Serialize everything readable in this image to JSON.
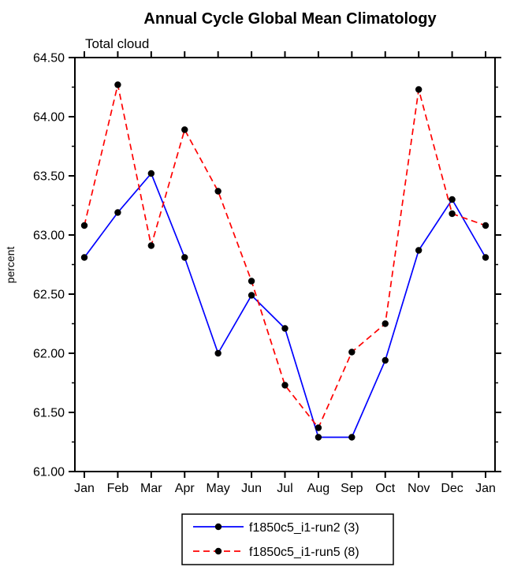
{
  "title": "Annual Cycle Global Mean Climatology",
  "subtitle": "Total cloud",
  "ylabel": "percent",
  "chart_data": {
    "type": "line",
    "categories": [
      "Jan",
      "Feb",
      "Mar",
      "Apr",
      "May",
      "Jun",
      "Jul",
      "Aug",
      "Sep",
      "Oct",
      "Nov",
      "Dec",
      "Jan"
    ],
    "series": [
      {
        "name": "f1850c5_i1-run2 (3)",
        "color": "#0000ff",
        "style": "solid",
        "values": [
          62.81,
          63.19,
          63.52,
          62.81,
          62.0,
          62.49,
          62.21,
          61.29,
          61.29,
          61.94,
          62.87,
          63.3,
          62.81
        ]
      },
      {
        "name": "f1850c5_i1-run5 (8)",
        "color": "#ff0000",
        "style": "dashed",
        "values": [
          63.08,
          64.27,
          62.91,
          63.89,
          63.37,
          62.61,
          61.73,
          61.37,
          62.01,
          62.25,
          64.23,
          63.18,
          63.08
        ]
      }
    ],
    "ylim": [
      61.0,
      64.5
    ],
    "ytick_step": 0.5,
    "ytick_minor_step": 0.25,
    "ytick_format_decimals": 2,
    "marker_color": "#000000",
    "grid": false,
    "legend_position": "bottom"
  }
}
